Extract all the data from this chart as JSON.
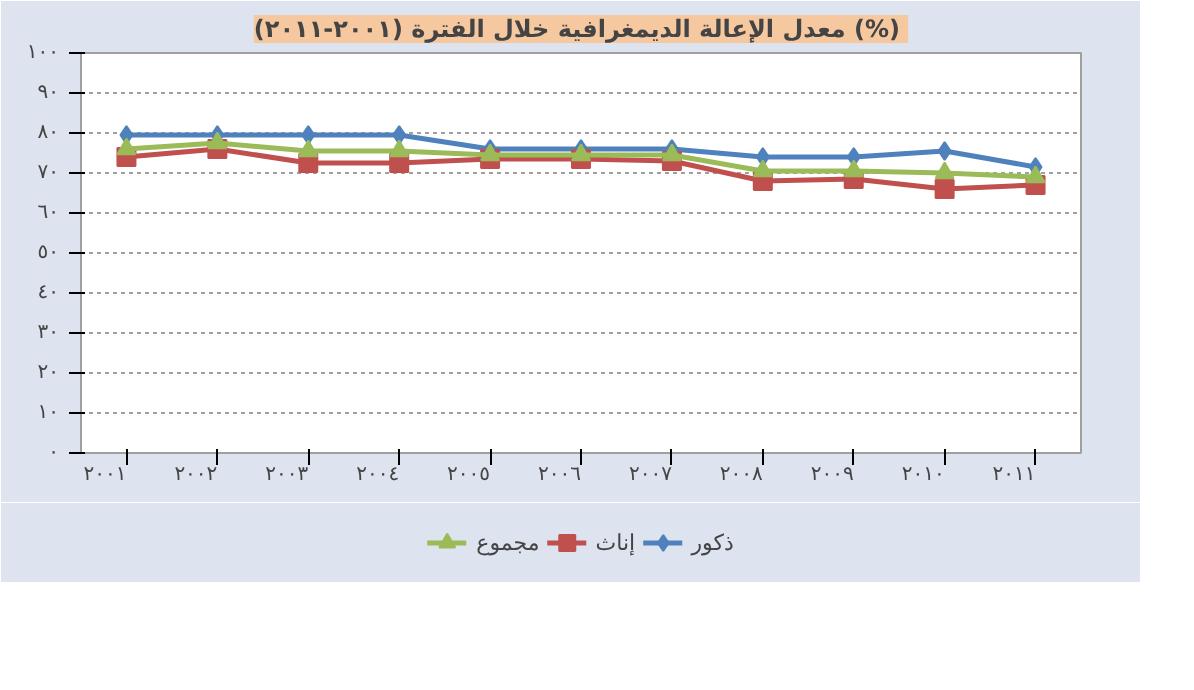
{
  "chart_data": {
    "type": "line",
    "title": "معدل الإعالة الديمغرافية  خلال الفترة (٢٠٠١-٢٠١١) (%)",
    "categories": [
      "٢٠٠١",
      "٢٠٠٢",
      "٢٠٠٣",
      "٢٠٠٤",
      "٢٠٠٥",
      "٢٠٠٦",
      "٢٠٠٧",
      "٢٠٠٨",
      "٢٠٠٩",
      "٢٠١٠",
      "٢٠١١"
    ],
    "series": [
      {
        "name": "ذكور",
        "color": "#4f81bd",
        "marker": "diamond",
        "values": [
          79.5,
          79.5,
          79.5,
          79.5,
          76,
          76,
          76,
          74,
          74,
          75.5,
          71.5
        ]
      },
      {
        "name": "إناث",
        "color": "#c0504d",
        "marker": "square",
        "values": [
          74,
          76,
          72.5,
          72.5,
          73.5,
          73.5,
          73,
          68,
          68.5,
          66,
          67
        ]
      },
      {
        "name": "مجموع",
        "color": "#9bbb59",
        "marker": "triangle",
        "values": [
          76,
          77.5,
          75.5,
          75.5,
          74.5,
          74.5,
          74.5,
          70.5,
          70.5,
          70,
          69
        ]
      }
    ],
    "ylim": [
      0,
      100
    ],
    "yticks": [
      {
        "value": 0,
        "label": "٠"
      },
      {
        "value": 10,
        "label": "١٠"
      },
      {
        "value": 20,
        "label": "٢٠"
      },
      {
        "value": 30,
        "label": "٣٠"
      },
      {
        "value": 40,
        "label": "٤٠"
      },
      {
        "value": 50,
        "label": "٥٠"
      },
      {
        "value": 60,
        "label": "٦٠"
      },
      {
        "value": 70,
        "label": "٧٠"
      },
      {
        "value": 80,
        "label": "٨٠"
      },
      {
        "value": 90,
        "label": "٩٠"
      },
      {
        "value": 100,
        "label": "١٠٠"
      }
    ],
    "grid": "y",
    "legend": "bottom",
    "line_style": "solid"
  }
}
